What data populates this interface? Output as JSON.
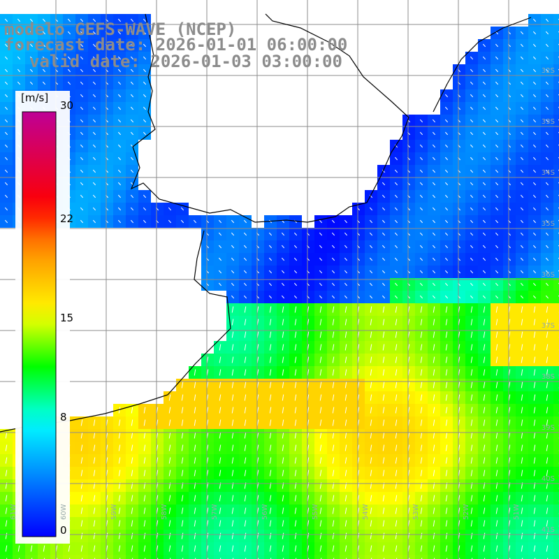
{
  "title": {
    "line1": "modelo GEFS-WAVE (NCEP)",
    "line2": "forecast date: 2026-01-01 06:00:00",
    "line3": "valid date: 2026-01-03 03:00:00"
  },
  "colorbar": {
    "unit": "[m/s]",
    "ticks": [
      {
        "value": 30,
        "label": "30"
      },
      {
        "value": 22,
        "label": "22"
      },
      {
        "value": 15,
        "label": "15"
      },
      {
        "value": 8,
        "label": "8"
      },
      {
        "value": 0,
        "label": "0"
      }
    ],
    "min": 0,
    "max": 30
  },
  "lat_labels": [
    "32S",
    "33S",
    "34S",
    "35S",
    "36S",
    "37S",
    "38S",
    "39S",
    "40S",
    "41S"
  ],
  "lon_labels": [
    "61W",
    "60W",
    "59W",
    "58W",
    "57W",
    "56W",
    "55W",
    "54W",
    "53W",
    "52W",
    "51W"
  ],
  "colors": {
    "land": "#ffffff",
    "coast": "#000000",
    "grid": "#8c8c8c",
    "title": "#8c8c8c",
    "arrows": "#ffffff"
  }
}
